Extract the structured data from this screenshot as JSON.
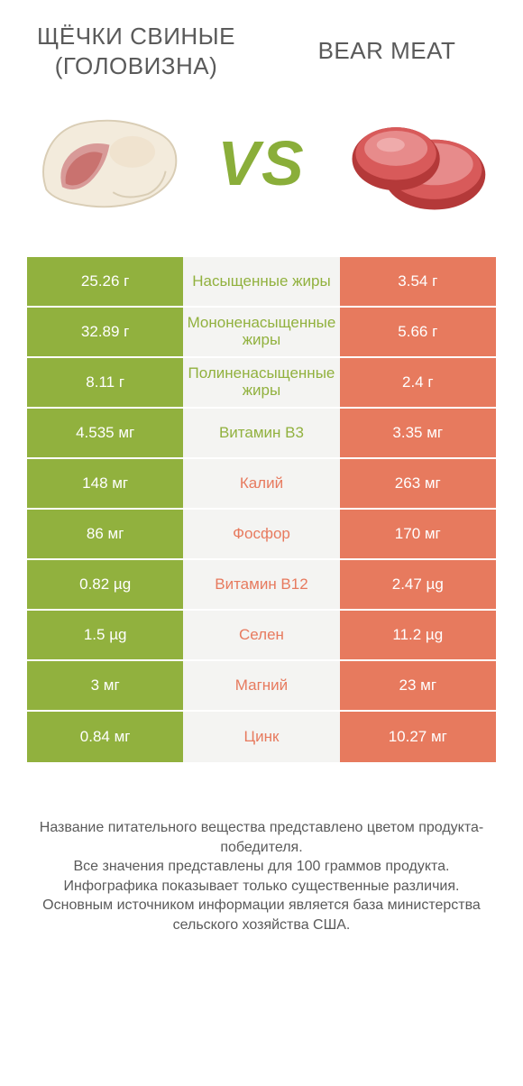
{
  "colors": {
    "green": "#91b13e",
    "orange": "#e77a5e",
    "mid_bg": "#f4f4f2",
    "text_gray": "#5a5a5a"
  },
  "titles": {
    "left": "ЩЁЧКИ СВИНЫЕ (ГОЛОВИЗНА)",
    "right": "BEAR MEAT",
    "vs": "VS"
  },
  "rows": [
    {
      "left": "25.26 г",
      "label": "Насыщенные жиры",
      "right": "3.54 г",
      "winner": "left"
    },
    {
      "left": "32.89 г",
      "label": "Мононенасыщенные жиры",
      "right": "5.66 г",
      "winner": "left"
    },
    {
      "left": "8.11 г",
      "label": "Полиненасыщенные жиры",
      "right": "2.4 г",
      "winner": "left"
    },
    {
      "left": "4.535 мг",
      "label": "Витамин B3",
      "right": "3.35 мг",
      "winner": "left"
    },
    {
      "left": "148 мг",
      "label": "Калий",
      "right": "263 мг",
      "winner": "right"
    },
    {
      "left": "86 мг",
      "label": "Фосфор",
      "right": "170 мг",
      "winner": "right"
    },
    {
      "left": "0.82 µg",
      "label": "Витамин B12",
      "right": "2.47 µg",
      "winner": "right"
    },
    {
      "left": "1.5 µg",
      "label": "Селен",
      "right": "11.2 µg",
      "winner": "right"
    },
    {
      "left": "3 мг",
      "label": "Магний",
      "right": "23 мг",
      "winner": "right"
    },
    {
      "left": "0.84 мг",
      "label": "Цинк",
      "right": "10.27 мг",
      "winner": "right"
    }
  ],
  "footer": {
    "line1": "Название питательного вещества представлено цветом продукта-победителя.",
    "line2": "Все значения представлены для 100 граммов продукта.",
    "line3": "Инфографика показывает только существенные различия.",
    "line4": "Основным источником информации является база министерства сельского хозяйства США."
  }
}
